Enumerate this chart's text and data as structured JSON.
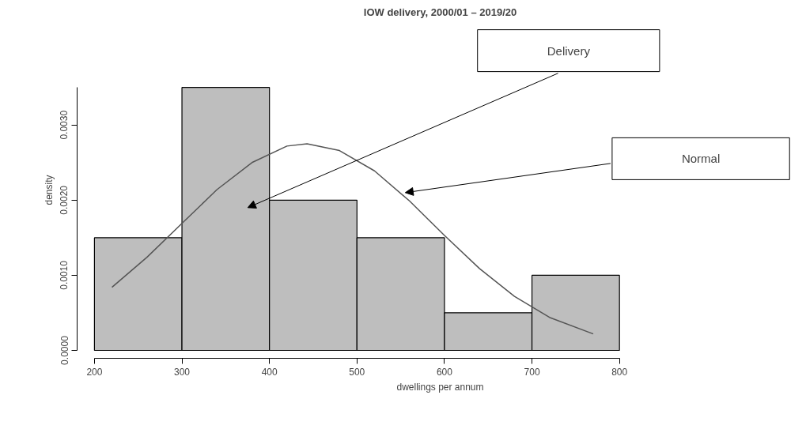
{
  "chart_data": {
    "type": "histogram",
    "title": "IOW delivery, 2000/01 – 2019/20",
    "xlabel": "dwellings per annum",
    "ylabel": "density",
    "bins": [
      200,
      300,
      400,
      500,
      600,
      700,
      800
    ],
    "values": [
      0.0015,
      0.0035,
      0.002,
      0.0015,
      0.0005,
      0.001
    ],
    "color": "#bebebe",
    "series": [
      {
        "type": "line",
        "color": "#555555",
        "x": [
          220,
          260,
          300,
          340,
          380,
          420,
          443,
          480,
          520,
          560,
          600,
          640,
          680,
          720,
          770
        ],
        "values": [
          0.00084,
          0.00124,
          0.00169,
          0.00214,
          0.0025,
          0.00272,
          0.00275,
          0.00266,
          0.00239,
          0.00199,
          0.00153,
          0.00109,
          0.00072,
          0.00044,
          0.00022
        ]
      }
    ],
    "annotations": [
      "Delivery",
      "Normal"
    ],
    "xlim": [
      200,
      800
    ],
    "ylim": [
      0,
      0.0035
    ],
    "xticks": [
      200,
      300,
      400,
      500,
      600,
      700,
      800
    ],
    "yticks": [
      {
        "value": 0,
        "label": "0.0000"
      },
      {
        "value": 0.001,
        "label": "0.0010"
      },
      {
        "value": 0.002,
        "label": "0.0020"
      },
      {
        "value": 0.003,
        "label": "0.0030"
      }
    ],
    "grid": false
  }
}
